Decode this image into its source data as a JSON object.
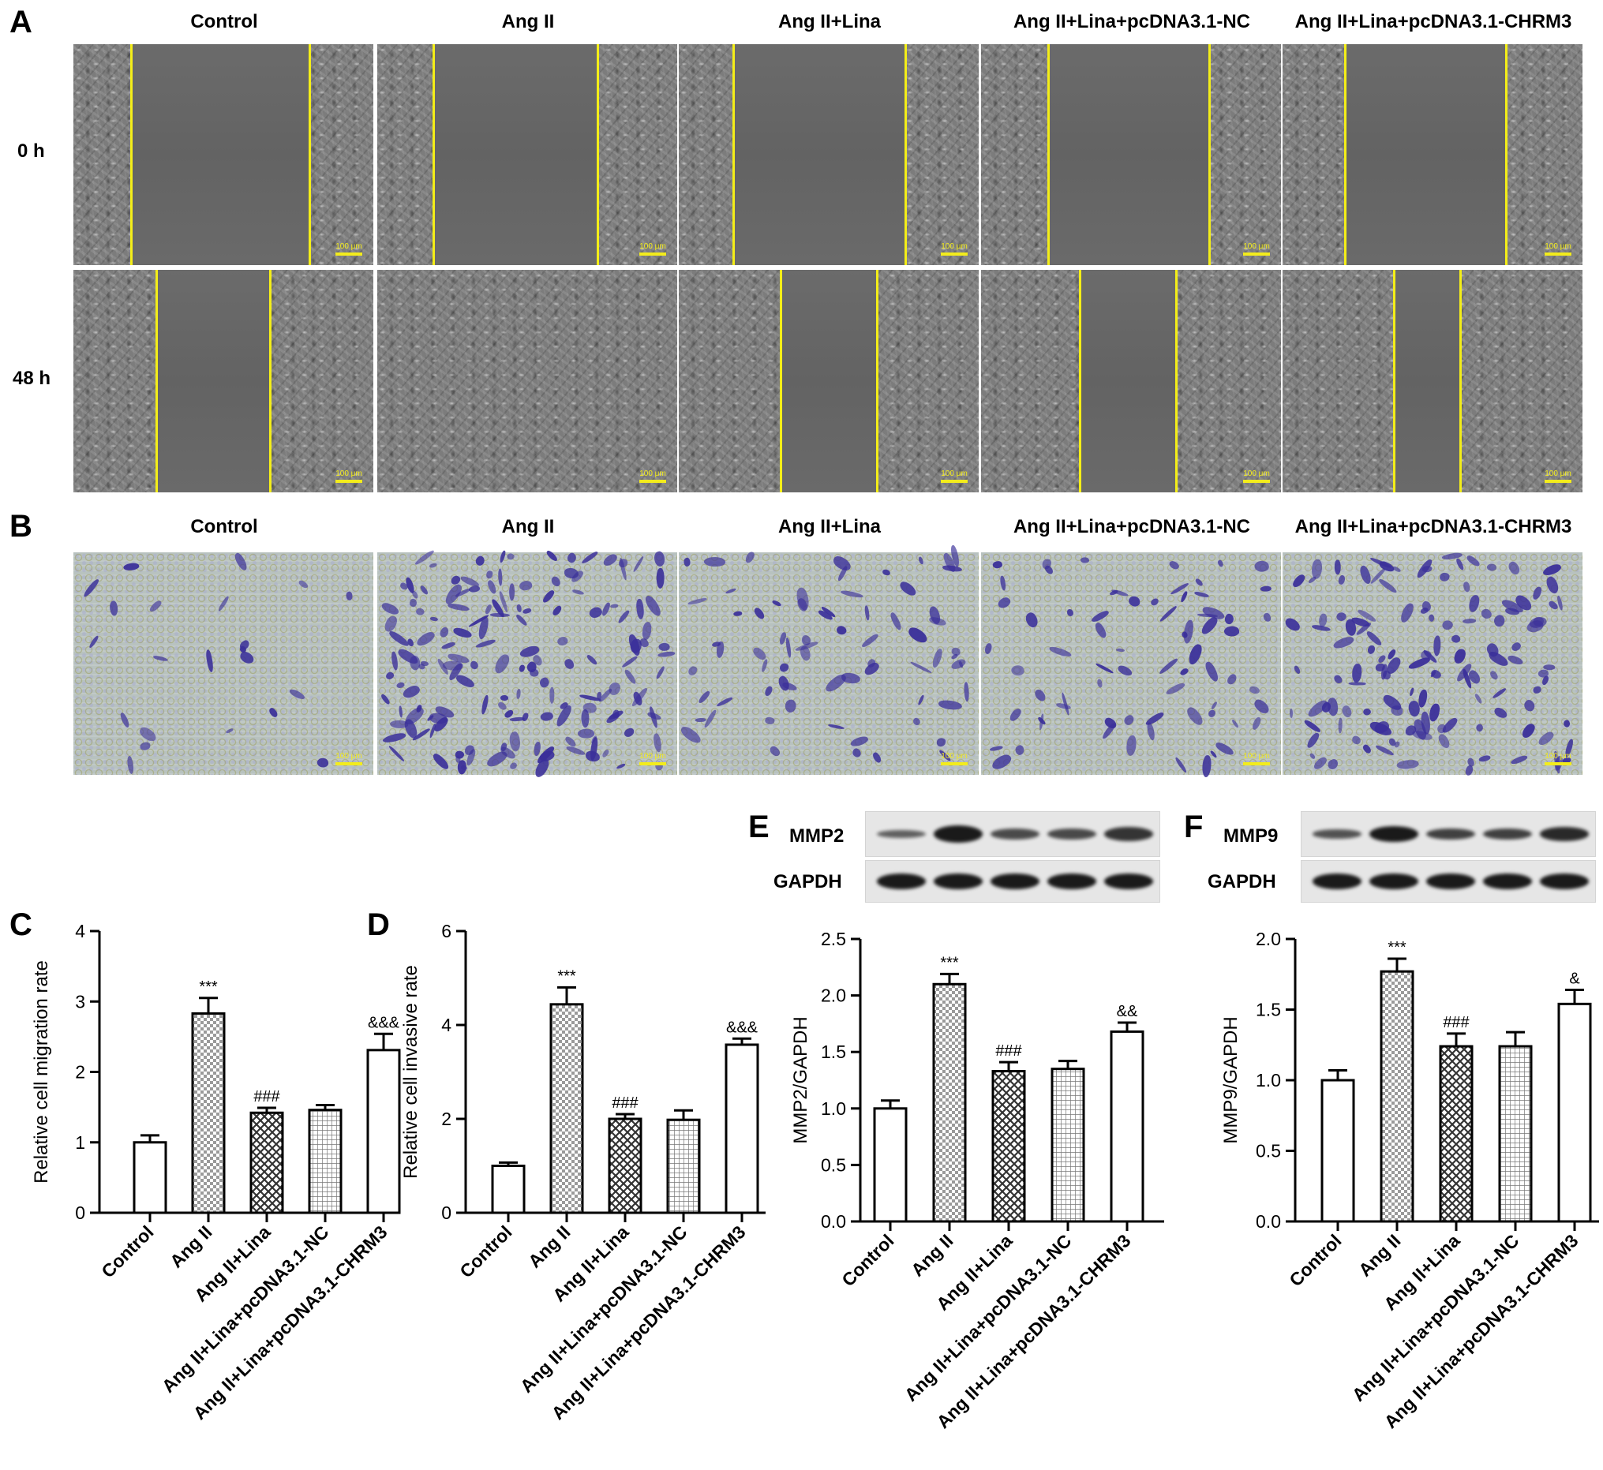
{
  "panels": {
    "a": "A",
    "b": "B",
    "c": "C",
    "d": "D",
    "e": "E",
    "f": "F"
  },
  "groups": [
    "Control",
    "Ang II",
    "Ang II+Lina",
    "Ang II+Lina+pcDNA3.1-NC",
    "Ang II+Lina+pcDNA3.1-CHRM3"
  ],
  "rows": [
    "0 h",
    "48 h"
  ],
  "scale_bar": "100 μm",
  "blots": {
    "e": {
      "target": "MMP2",
      "loading": "GAPDH"
    },
    "f": {
      "target": "MMP9",
      "loading": "GAPDH"
    }
  },
  "colors": {
    "line_yellow": "#f4ee18",
    "stain": "#3a2f9a"
  },
  "chart_data": [
    {
      "id": "C",
      "type": "bar",
      "categories": [
        "Control",
        "Ang II",
        "Ang II+Lina",
        "Ang II+Lina+pcDNA3.1-NC",
        "Ang II+Lina+pcDNA3.1-CHRM3"
      ],
      "values": [
        1.0,
        2.83,
        1.42,
        1.46,
        2.31
      ],
      "errors": [
        0.1,
        0.22,
        0.07,
        0.07,
        0.23
      ],
      "significance": [
        "",
        "***",
        "###",
        "",
        "&&&"
      ],
      "patterns": [
        "none",
        "check",
        "diamond",
        "grid",
        "none"
      ],
      "ylabel": "Relative cell migration rate",
      "ylim": [
        0,
        4
      ],
      "yticks": [
        "0",
        "1",
        "2",
        "3",
        "4"
      ]
    },
    {
      "id": "D",
      "type": "bar",
      "categories": [
        "Control",
        "Ang II",
        "Ang II+Lina",
        "Ang II+Lina+pcDNA3.1-NC",
        "Ang II+Lina+pcDNA3.1-CHRM3"
      ],
      "values": [
        1.0,
        4.44,
        2.0,
        1.98,
        3.58
      ],
      "errors": [
        0.07,
        0.36,
        0.1,
        0.2,
        0.13
      ],
      "significance": [
        "",
        "***",
        "###",
        "",
        "&&&"
      ],
      "patterns": [
        "none",
        "check",
        "diamond",
        "grid",
        "none"
      ],
      "ylabel": "Relative cell invasive rate",
      "ylim": [
        0,
        6
      ],
      "yticks": [
        "0",
        "2",
        "4",
        "6"
      ]
    },
    {
      "id": "E",
      "type": "bar",
      "categories": [
        "Control",
        "Ang II",
        "Ang II+Lina",
        "Ang II+Lina+pcDNA3.1-NC",
        "Ang II+Lina+pcDNA3.1-CHRM3"
      ],
      "values": [
        1.0,
        2.1,
        1.33,
        1.35,
        1.68
      ],
      "errors": [
        0.07,
        0.09,
        0.08,
        0.07,
        0.08
      ],
      "significance": [
        "",
        "***",
        "###",
        "",
        "&&"
      ],
      "patterns": [
        "none",
        "check",
        "diamond",
        "grid",
        "none"
      ],
      "ylabel": "MMP2/GAPDH",
      "ylim": [
        0,
        2.5
      ],
      "yticks": [
        "0.0",
        "0.5",
        "1.0",
        "1.5",
        "2.0",
        "2.5"
      ]
    },
    {
      "id": "F",
      "type": "bar",
      "categories": [
        "Control",
        "Ang II",
        "Ang II+Lina",
        "Ang II+Lina+pcDNA3.1-NC",
        "Ang II+Lina+pcDNA3.1-CHRM3"
      ],
      "values": [
        1.0,
        1.77,
        1.24,
        1.24,
        1.54
      ],
      "errors": [
        0.07,
        0.09,
        0.09,
        0.1,
        0.1
      ],
      "significance": [
        "",
        "***",
        "###",
        "",
        "&"
      ],
      "patterns": [
        "none",
        "check",
        "diamond",
        "grid",
        "none"
      ],
      "ylabel": "MMP9/GAPDH",
      "ylim": [
        0,
        2.0
      ],
      "yticks": [
        "0.0",
        "0.5",
        "1.0",
        "1.5",
        "2.0"
      ]
    }
  ]
}
